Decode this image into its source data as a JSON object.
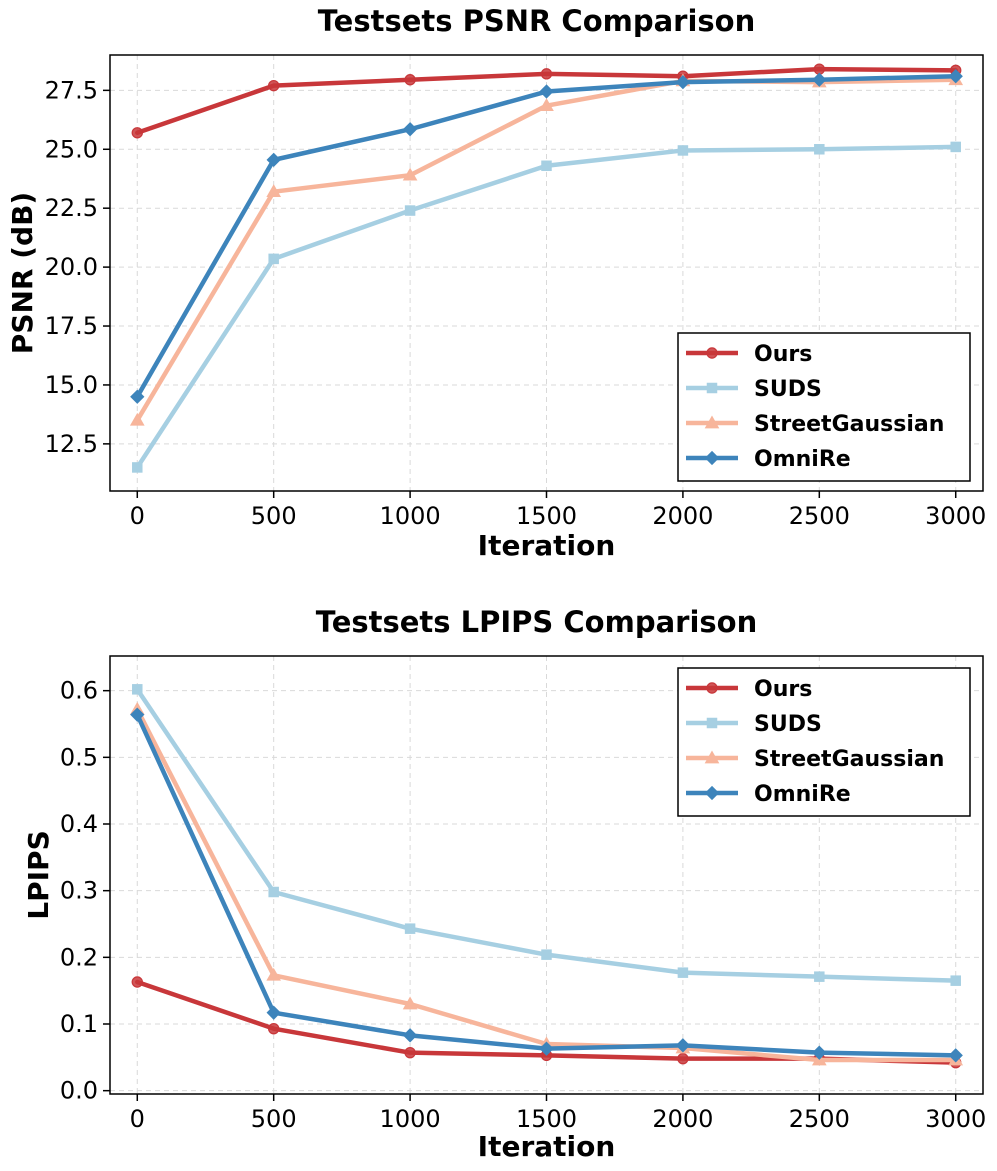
{
  "chart_data": [
    {
      "type": "line",
      "title": "Testsets PSNR Comparison",
      "xlabel": "Iteration",
      "ylabel": "PSNR (dB)",
      "x": [
        0,
        500,
        1000,
        1500,
        2000,
        2500,
        3000
      ],
      "xlim": [
        -100,
        3100
      ],
      "ylim": [
        10.5,
        29.0
      ],
      "xticks": [
        "0",
        "500",
        "1000",
        "1500",
        "2000",
        "2500",
        "3000"
      ],
      "yticks": [
        12.5,
        15.0,
        17.5,
        20.0,
        22.5,
        25.0,
        27.5
      ],
      "ytick_labels": [
        "12.5",
        "15.0",
        "17.5",
        "20.0",
        "22.5",
        "25.0",
        "27.5"
      ],
      "grid": true,
      "legend_position": "lower-right",
      "series": [
        {
          "name": "Ours",
          "color": "#c8373a",
          "marker": "circle",
          "values": [
            25.7,
            27.7,
            27.95,
            28.2,
            28.1,
            28.4,
            28.35
          ]
        },
        {
          "name": "SUDS",
          "color": "#a6cfe2",
          "marker": "square",
          "values": [
            11.5,
            20.35,
            22.4,
            24.3,
            24.95,
            25.0,
            25.1
          ]
        },
        {
          "name": "StreetGaussian",
          "color": "#f7b59b",
          "marker": "triangle",
          "values": [
            13.5,
            23.2,
            23.9,
            26.85,
            27.9,
            27.85,
            27.95
          ]
        },
        {
          "name": "OmniRe",
          "color": "#3d84bb",
          "marker": "diamond",
          "values": [
            14.5,
            24.55,
            25.85,
            27.45,
            27.85,
            27.95,
            28.1
          ]
        }
      ]
    },
    {
      "type": "line",
      "title": "Testsets LPIPS Comparison",
      "xlabel": "Iteration",
      "ylabel": "LPIPS",
      "x": [
        0,
        500,
        1000,
        1500,
        2000,
        2500,
        3000
      ],
      "xlim": [
        -100,
        3100
      ],
      "ylim": [
        -0.005,
        0.652
      ],
      "xticks": [
        "0",
        "500",
        "1000",
        "1500",
        "2000",
        "2500",
        "3000"
      ],
      "yticks": [
        0.0,
        0.1,
        0.2,
        0.3,
        0.4,
        0.5,
        0.6
      ],
      "ytick_labels": [
        "0.0",
        "0.1",
        "0.2",
        "0.3",
        "0.4",
        "0.5",
        "0.6"
      ],
      "grid": true,
      "legend_position": "upper-right",
      "series": [
        {
          "name": "Ours",
          "color": "#c8373a",
          "marker": "circle",
          "values": [
            0.163,
            0.093,
            0.057,
            0.053,
            0.048,
            0.048,
            0.042
          ]
        },
        {
          "name": "SUDS",
          "color": "#a6cfe2",
          "marker": "square",
          "values": [
            0.602,
            0.298,
            0.243,
            0.204,
            0.177,
            0.171,
            0.165
          ]
        },
        {
          "name": "StreetGaussian",
          "color": "#f7b59b",
          "marker": "triangle",
          "values": [
            0.572,
            0.173,
            0.13,
            0.07,
            0.064,
            0.046,
            0.046
          ]
        },
        {
          "name": "OmniRe",
          "color": "#3d84bb",
          "marker": "diamond",
          "values": [
            0.564,
            0.117,
            0.083,
            0.063,
            0.068,
            0.057,
            0.053
          ]
        }
      ]
    }
  ]
}
